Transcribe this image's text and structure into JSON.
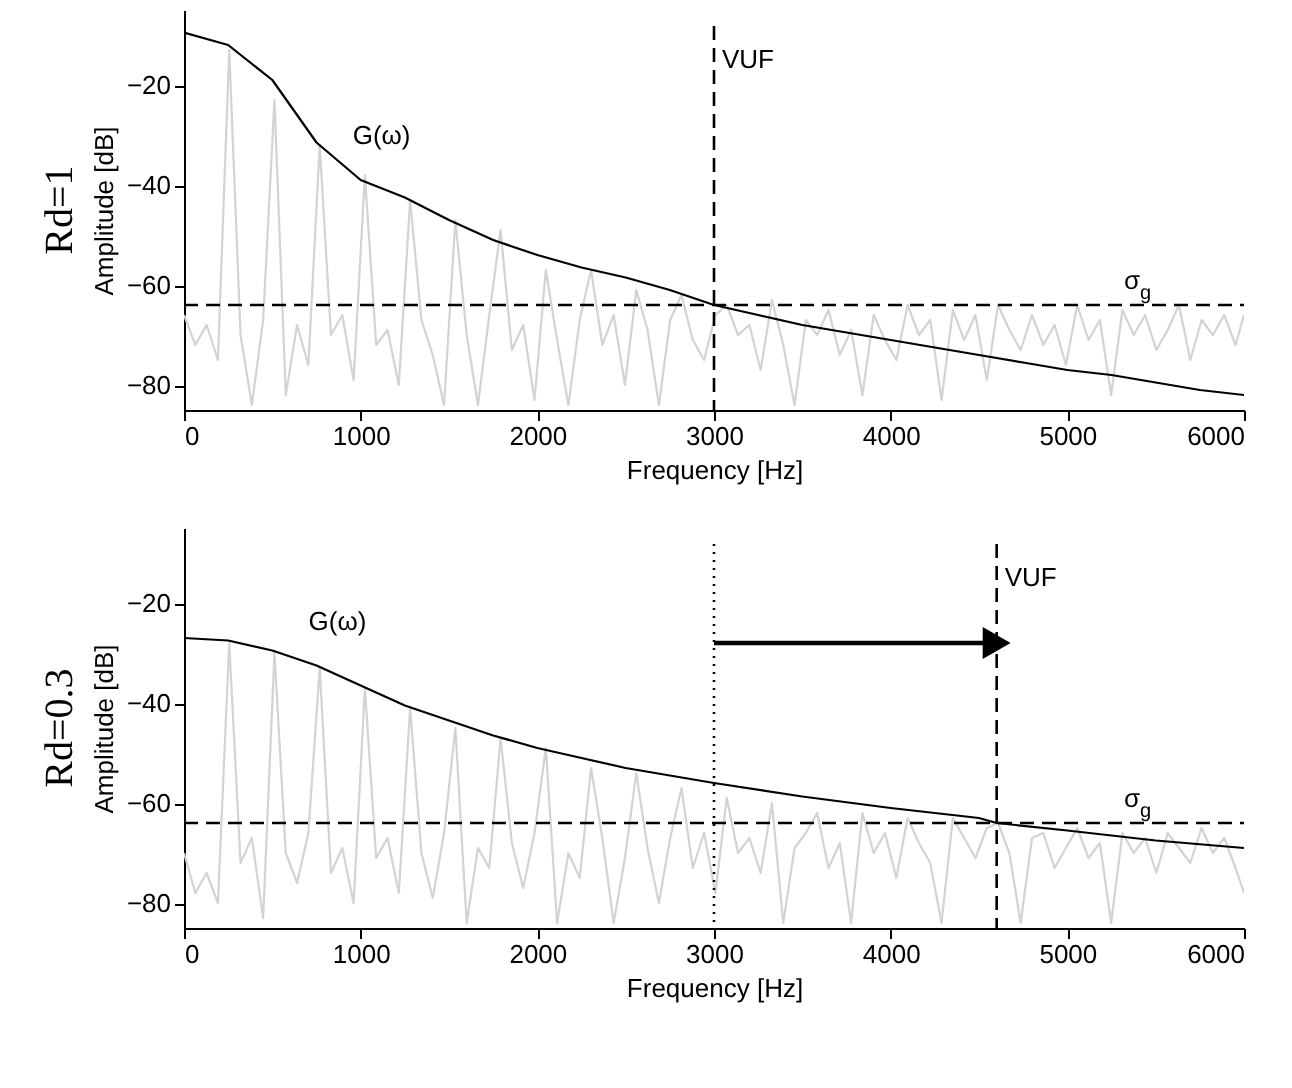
{
  "chart_data": [
    {
      "type": "line",
      "xlabel": "Frequency [Hz]",
      "ylabel": "Amplitude [dB]",
      "xlim": [
        0,
        6000
      ],
      "ylim": [
        -85,
        -5
      ],
      "xticks": [
        0,
        1000,
        2000,
        3000,
        4000,
        5000,
        6000
      ],
      "yticks": [
        -80,
        -60,
        -40,
        -20
      ],
      "grid": false,
      "legend": false,
      "line_style": "solid",
      "marker": "none",
      "annotations": [
        "Rd=1"
      ],
      "ref_lines": [
        {
          "axis": "x",
          "value": 3000,
          "label": "VUF",
          "line_style": "dashed",
          "color": "#000000"
        },
        {
          "axis": "y",
          "value": -64,
          "label": "σ$_{g}$",
          "line_style": "dashed",
          "color": "#000000"
        }
      ],
      "series": [
        {
          "color": "#d3d3d3",
          "x": [
            0,
            64,
            128,
            192,
            256,
            320,
            384,
            448,
            512,
            576,
            640,
            704,
            768,
            832,
            896,
            960,
            1024,
            1088,
            1152,
            1216,
            1280,
            1344,
            1408,
            1472,
            1536,
            1600,
            1664,
            1728,
            1792,
            1856,
            1920,
            1984,
            2048,
            2112,
            2176,
            2240,
            2304,
            2368,
            2432,
            2496,
            2560,
            2624,
            2688,
            2752,
            2816,
            2880,
            2944,
            3008,
            3072,
            3136,
            3200,
            3264,
            3328,
            3392,
            3456,
            3520,
            3584,
            3648,
            3712,
            3776,
            3840,
            3904,
            3968,
            4032,
            4096,
            4160,
            4224,
            4288,
            4352,
            4416,
            4480,
            4544,
            4608,
            4672,
            4736,
            4800,
            4864,
            4928,
            4992,
            5056,
            5120,
            5184,
            5248,
            5312,
            5376,
            5440,
            5504,
            5568,
            5632,
            5696,
            5760,
            5824,
            5888,
            5952,
            6000
          ],
          "values": [
            -66,
            -72,
            -68,
            -75,
            -13,
            -70,
            -84,
            -67,
            -23,
            -82,
            -68,
            -76,
            -32,
            -70,
            -66,
            -79,
            -38,
            -72,
            -69,
            -80,
            -43,
            -67,
            -74,
            -84,
            -47,
            -70,
            -84,
            -66,
            -49,
            -73,
            -68,
            -83,
            -57,
            -71,
            -84,
            -67,
            -57,
            -72,
            -66,
            -80,
            -61,
            -69,
            -84,
            -67,
            -62,
            -71,
            -75,
            -66,
            -64,
            -70,
            -68,
            -77,
            -63,
            -72,
            -84,
            -67,
            -70,
            -65,
            -74,
            -69,
            -82,
            -66,
            -71,
            -75,
            -64,
            -70,
            -67,
            -83,
            -65,
            -71,
            -66,
            -79,
            -64,
            -69,
            -73,
            -66,
            -72,
            -68,
            -76,
            -64,
            -71,
            -67,
            -82,
            -65,
            -70,
            -66,
            -73,
            -69,
            -64,
            -75,
            -67,
            -70,
            -66,
            -72,
            -66
          ]
        },
        {
          "name": "G(ω)",
          "color": "#000000",
          "x": [
            0,
            250,
            500,
            750,
            1000,
            1250,
            1500,
            1750,
            2000,
            2250,
            2500,
            2750,
            3000,
            3250,
            3500,
            3750,
            4000,
            4250,
            4500,
            4750,
            5000,
            5250,
            5500,
            5750,
            6000
          ],
          "values": [
            -9.5,
            -12,
            -19,
            -31.5,
            -39,
            -42.5,
            -47,
            -51,
            -54,
            -56.5,
            -58.5,
            -61,
            -64,
            -66,
            -68,
            -69.5,
            -71,
            -72.5,
            -74,
            -75.5,
            -77,
            -78,
            -79.5,
            -81,
            -82
          ]
        }
      ]
    },
    {
      "type": "line",
      "xlabel": "Frequency [Hz]",
      "ylabel": "Amplitude [dB]",
      "xlim": [
        0,
        6000
      ],
      "ylim": [
        -85,
        -5
      ],
      "xticks": [
        0,
        1000,
        2000,
        3000,
        4000,
        5000,
        6000
      ],
      "yticks": [
        -80,
        -60,
        -40,
        -20
      ],
      "grid": false,
      "legend": false,
      "line_style": "solid",
      "marker": "none",
      "annotations": [
        "Rd=0.3"
      ],
      "ref_lines": [
        {
          "axis": "x",
          "value": 3000,
          "line_style": "dotted",
          "color": "#000000"
        },
        {
          "axis": "x",
          "value": 4600,
          "label": "VUF",
          "line_style": "dashed",
          "color": "#000000"
        },
        {
          "axis": "y",
          "value": -64,
          "label": "σ$_{g}$",
          "line_style": "dashed",
          "color": "#000000"
        }
      ],
      "series": [
        {
          "color": "#d3d3d3",
          "x": [
            0,
            64,
            128,
            192,
            256,
            320,
            384,
            448,
            512,
            576,
            640,
            704,
            768,
            832,
            896,
            960,
            1024,
            1088,
            1152,
            1216,
            1280,
            1344,
            1408,
            1472,
            1536,
            1600,
            1664,
            1728,
            1792,
            1856,
            1920,
            1984,
            2048,
            2112,
            2176,
            2240,
            2304,
            2368,
            2432,
            2496,
            2560,
            2624,
            2688,
            2752,
            2816,
            2880,
            2944,
            3008,
            3072,
            3136,
            3200,
            3264,
            3328,
            3392,
            3456,
            3520,
            3584,
            3648,
            3712,
            3776,
            3840,
            3904,
            3968,
            4032,
            4096,
            4160,
            4224,
            4288,
            4352,
            4416,
            4480,
            4544,
            4608,
            4672,
            4736,
            4800,
            4864,
            4928,
            4992,
            5056,
            5120,
            5184,
            5248,
            5312,
            5376,
            5440,
            5504,
            5568,
            5632,
            5696,
            5760,
            5824,
            5888,
            5952,
            6000
          ],
          "values": [
            -70,
            -78,
            -74,
            -80,
            -28,
            -72,
            -67,
            -83,
            -30,
            -70,
            -76,
            -66,
            -33,
            -74,
            -69,
            -80,
            -37,
            -71,
            -67,
            -78,
            -41,
            -70,
            -79,
            -66,
            -45,
            -84,
            -69,
            -73,
            -47,
            -68,
            -77,
            -66,
            -49,
            -84,
            -70,
            -75,
            -53,
            -67,
            -84,
            -71,
            -54,
            -69,
            -80,
            -67,
            -57,
            -73,
            -66,
            -78,
            -59,
            -70,
            -67,
            -74,
            -60,
            -84,
            -69,
            -66,
            -62,
            -73,
            -68,
            -84,
            -62,
            -70,
            -66,
            -75,
            -63,
            -68,
            -72,
            -84,
            -63,
            -67,
            -71,
            -65,
            -64,
            -70,
            -84,
            -67,
            -66,
            -73,
            -69,
            -65,
            -71,
            -68,
            -84,
            -66,
            -70,
            -67,
            -74,
            -66,
            -69,
            -72,
            -65,
            -70,
            -67,
            -73,
            -78
          ]
        },
        {
          "name": "G(ω)",
          "color": "#000000",
          "x": [
            0,
            250,
            500,
            750,
            1000,
            1250,
            1500,
            1750,
            2000,
            2250,
            2500,
            2750,
            3000,
            3500,
            4000,
            4500,
            4600,
            5000,
            5500,
            6000
          ],
          "values": [
            -27,
            -27.5,
            -29.5,
            -32.5,
            -36.5,
            -40.5,
            -43.5,
            -46.5,
            -49,
            -51,
            -53,
            -54.5,
            -56,
            -58.7,
            -61,
            -63,
            -64,
            -65.5,
            -67.5,
            -69
          ]
        },
        {
          "color": "#000000",
          "marker": "triangle",
          "x": [
            3000,
            4600
          ],
          "values": [
            -28,
            -28
          ]
        }
      ]
    }
  ]
}
